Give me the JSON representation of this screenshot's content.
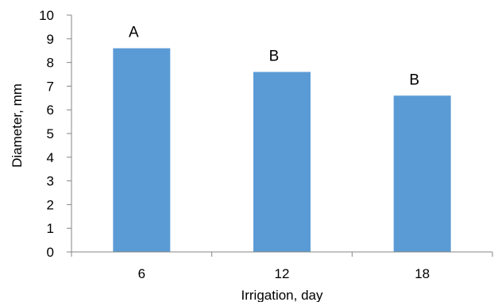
{
  "chart_data": {
    "type": "bar",
    "categories": [
      "6",
      "12",
      "18"
    ],
    "values": [
      8.6,
      7.6,
      6.6
    ],
    "annotations": [
      "A",
      "B",
      "B"
    ],
    "title": "",
    "xlabel": "Irrigation, day",
    "ylabel": "Diameter, mm",
    "ylim": [
      0,
      10
    ],
    "yticks": [
      0,
      1,
      2,
      3,
      4,
      5,
      6,
      7,
      8,
      9,
      10
    ],
    "grid": false,
    "legend": "none",
    "bar_color": "#5b9bd5",
    "axis_color": "#868686"
  }
}
